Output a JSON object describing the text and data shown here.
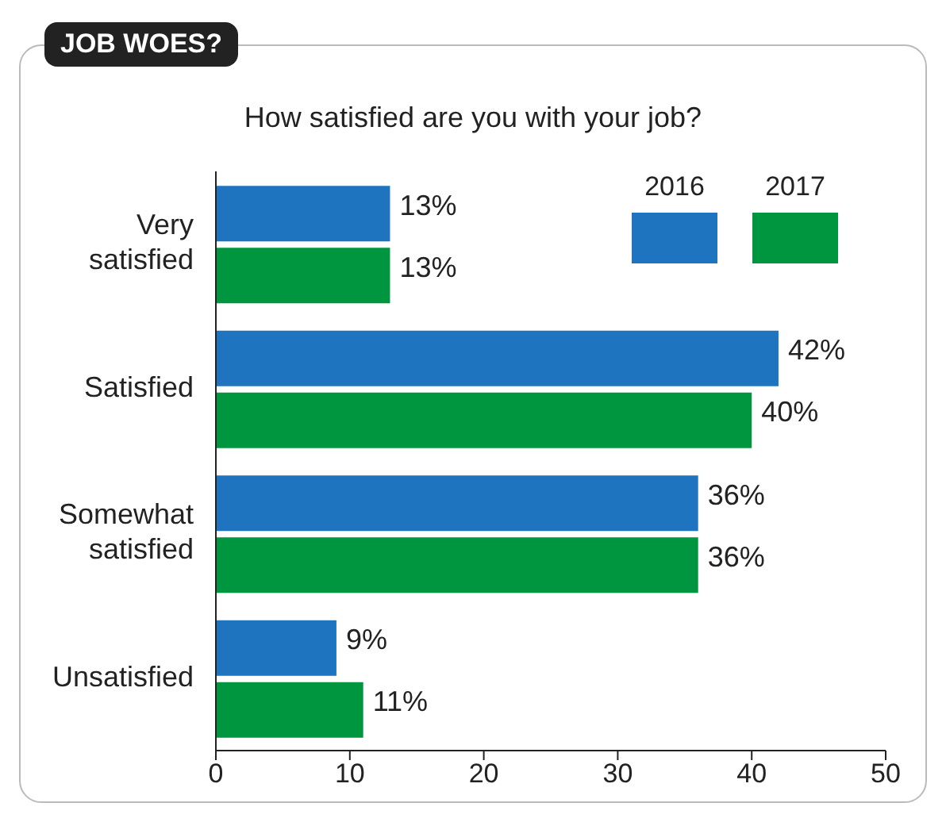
{
  "chart_data": {
    "type": "bar",
    "orientation": "horizontal",
    "title": "JOB WOES?",
    "subtitle": "How satisfied are you with your job?",
    "categories": [
      "Very satisfied",
      "Satisfied",
      "Somewhat satisfied",
      "Unsatisfied"
    ],
    "series": [
      {
        "name": "2016",
        "color": "#1f74c0",
        "values": [
          13,
          42,
          36,
          9
        ],
        "value_labels": [
          "13%",
          "42%",
          "36%",
          "9%"
        ]
      },
      {
        "name": "2017",
        "color": "#00963f",
        "values": [
          13,
          40,
          36,
          11
        ],
        "value_labels": [
          "13%",
          "40%",
          "36%",
          "11%"
        ]
      }
    ],
    "xlim": [
      0,
      50
    ],
    "xticks": [
      0,
      10,
      20,
      30,
      40,
      50
    ],
    "grid": false,
    "legend": "top right"
  }
}
